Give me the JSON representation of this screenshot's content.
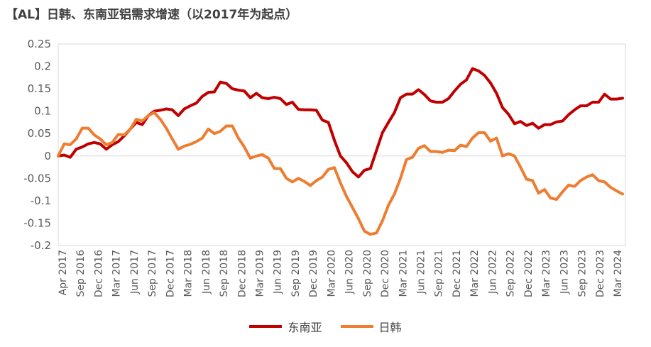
{
  "chart_data": {
    "type": "line",
    "title": "【AL】日韩、东南亚铝需求增速（以2017年为起点）",
    "xlabel": "",
    "ylabel": "",
    "ylim": [
      -0.2,
      0.25
    ],
    "yticks": [
      0.25,
      0.2,
      0.15,
      0.1,
      0.05,
      0,
      -0.05,
      -0.1,
      -0.15,
      -0.2
    ],
    "ytick_labels": [
      "0.25",
      "0.2",
      "0.15",
      "0.1",
      "0.05",
      "0",
      "-0.05",
      "-0.1",
      "-0.15",
      "-0.2"
    ],
    "x_labels": [
      "Apr 2017",
      "Sep 2016",
      "Dec 2016",
      "Mar 2017",
      "Jun 2017",
      "Sep 2017",
      "Dec 2017",
      "Mar 2018",
      "Jun 2018",
      "Sep 2018",
      "Dec 2018",
      "Mar 2019",
      "Jun 2019",
      "Sep 2019",
      "Dec 2019",
      "Mar 2020",
      "Jun 2020",
      "Sep 2020",
      "Dec 2020",
      "Mar 2021",
      "Jun 2021",
      "Sep 2021",
      "Dec 2021",
      "Mar 2022",
      "Jun 2022",
      "Sep 2022",
      "Dec 2022",
      "Mar 2023",
      "Jun 2023",
      "Sep 2023",
      "Dec 2023",
      "Mar 2024"
    ],
    "grid": false,
    "legend_position": "bottom",
    "series": [
      {
        "name": "东南亚",
        "color": "#C00000",
        "values": [
          0,
          0.002,
          -0.003,
          0.015,
          0.02,
          0.027,
          0.03,
          0.027,
          0.015,
          0.025,
          0.032,
          0.045,
          0.06,
          0.075,
          0.07,
          0.09,
          0.1,
          0.102,
          0.105,
          0.103,
          0.09,
          0.105,
          0.112,
          0.118,
          0.133,
          0.142,
          0.143,
          0.165,
          0.162,
          0.15,
          0.147,
          0.145,
          0.13,
          0.14,
          0.13,
          0.128,
          0.131,
          0.128,
          0.115,
          0.12,
          0.104,
          0.103,
          0.103,
          0.102,
          0.08,
          0.075,
          0.035,
          0,
          -0.015,
          -0.035,
          -0.047,
          -0.032,
          -0.028,
          0.012,
          0.052,
          0.075,
          0.097,
          0.13,
          0.138,
          0.138,
          0.148,
          0.137,
          0.123,
          0.12,
          0.12,
          0.128,
          0.145,
          0.16,
          0.17,
          0.195,
          0.19,
          0.18,
          0.163,
          0.14,
          0.108,
          0.093,
          0.072,
          0.077,
          0.068,
          0.073,
          0.062,
          0.07,
          0.07,
          0.076,
          0.078,
          0.092,
          0.103,
          0.112,
          0.112,
          0.12,
          0.12,
          0.138,
          0.127,
          0.127,
          0.129
        ]
      },
      {
        "name": "日韩",
        "color": "#ED7D31",
        "values": [
          0,
          0.027,
          0.025,
          0.038,
          0.062,
          0.062,
          0.047,
          0.038,
          0.025,
          0.03,
          0.048,
          0.047,
          0.06,
          0.082,
          0.078,
          0.09,
          0.097,
          0.082,
          0.062,
          0.038,
          0.015,
          0.022,
          0.026,
          0.032,
          0.04,
          0.06,
          0.05,
          0.055,
          0.067,
          0.067,
          0.04,
          0.02,
          -0.005,
          0,
          0.003,
          -0.005,
          -0.028,
          -0.028,
          -0.05,
          -0.058,
          -0.05,
          -0.057,
          -0.066,
          -0.055,
          -0.047,
          -0.03,
          -0.026,
          -0.06,
          -0.09,
          -0.115,
          -0.14,
          -0.168,
          -0.175,
          -0.172,
          -0.145,
          -0.11,
          -0.085,
          -0.05,
          -0.008,
          -0.003,
          0.017,
          0.023,
          0.01,
          0.01,
          0.008,
          0.013,
          0.012,
          0.024,
          0.021,
          0.04,
          0.052,
          0.052,
          0.033,
          0.04,
          0,
          0.005,
          0,
          -0.025,
          -0.052,
          -0.055,
          -0.083,
          -0.075,
          -0.094,
          -0.097,
          -0.08,
          -0.065,
          -0.068,
          -0.055,
          -0.047,
          -0.042,
          -0.055,
          -0.058,
          -0.07,
          -0.078,
          -0.085
        ]
      }
    ]
  }
}
